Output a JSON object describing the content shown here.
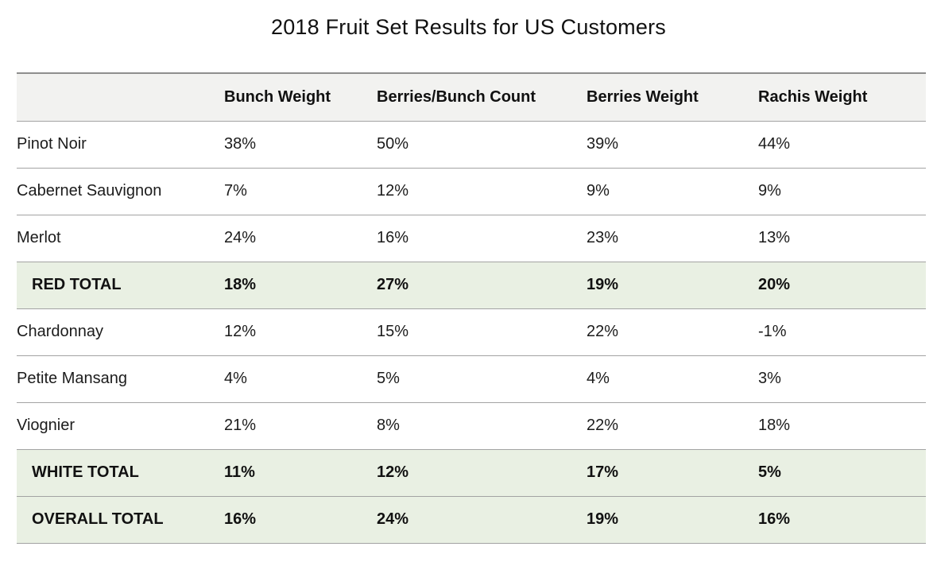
{
  "title": "2018 Fruit Set Results for US Customers",
  "colors": {
    "header_bg": "#f2f2f0",
    "total_row_bg": "#e9f0e3",
    "row_border": "#a3a3a3",
    "header_top_border": "#8e8e8e",
    "text": "#1a1a1a"
  },
  "chart_data": {
    "type": "table",
    "title": "2018 Fruit Set Results for US Customers",
    "columns": [
      "",
      "Bunch Weight",
      "Berries/Bunch Count",
      "Berries Weight",
      "Rachis Weight"
    ],
    "rows": [
      {
        "label": "Pinot Noir",
        "kind": "data",
        "values": [
          "38%",
          "50%",
          "39%",
          "44%"
        ]
      },
      {
        "label": "Cabernet Sauvignon",
        "kind": "data",
        "values": [
          "7%",
          "12%",
          "9%",
          "9%"
        ]
      },
      {
        "label": "Merlot",
        "kind": "data",
        "values": [
          "24%",
          "16%",
          "23%",
          "13%"
        ]
      },
      {
        "label": "RED TOTAL",
        "kind": "total",
        "values": [
          "18%",
          "27%",
          "19%",
          "20%"
        ]
      },
      {
        "label": "Chardonnay",
        "kind": "data",
        "values": [
          "12%",
          "15%",
          "22%",
          "-1%"
        ]
      },
      {
        "label": "Petite Mansang",
        "kind": "data",
        "values": [
          "4%",
          "5%",
          "4%",
          "3%"
        ]
      },
      {
        "label": "Viognier",
        "kind": "data",
        "values": [
          "21%",
          "8%",
          "22%",
          "18%"
        ]
      },
      {
        "label": "WHITE TOTAL",
        "kind": "total",
        "values": [
          "11%",
          "12%",
          "17%",
          "5%"
        ]
      },
      {
        "label": "OVERALL TOTAL",
        "kind": "total",
        "values": [
          "16%",
          "24%",
          "19%",
          "16%"
        ]
      }
    ],
    "layout": {
      "legend": "none",
      "grid": "horizontal-row-dividers",
      "value_format": "percent"
    }
  }
}
